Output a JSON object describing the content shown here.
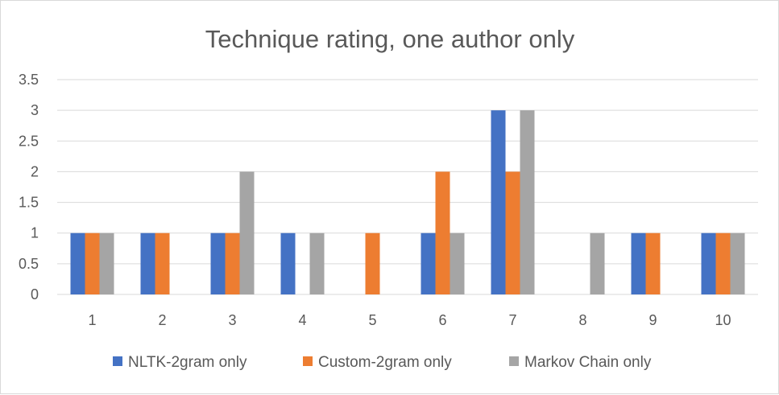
{
  "chart_data": {
    "type": "bar",
    "title": "Technique rating, one author only",
    "xlabel": "",
    "ylabel": "",
    "categories": [
      "1",
      "2",
      "3",
      "4",
      "5",
      "6",
      "7",
      "8",
      "9",
      "10"
    ],
    "ylim": [
      0,
      3.5
    ],
    "yticks": [
      "0",
      "0.5",
      "1",
      "1.5",
      "2",
      "2.5",
      "3",
      "3.5"
    ],
    "ytick_values": [
      0,
      0.5,
      1,
      1.5,
      2,
      2.5,
      3,
      3.5
    ],
    "grid": true,
    "legend_position": "bottom",
    "series": [
      {
        "name": "NLTK-2gram only",
        "color": "#4472C4",
        "values": [
          1,
          1,
          1,
          1,
          0,
          1,
          3,
          0,
          1,
          1
        ]
      },
      {
        "name": "Custom-2gram only",
        "color": "#ED7D31",
        "values": [
          1,
          1,
          1,
          0,
          1,
          2,
          2,
          0,
          1,
          1
        ]
      },
      {
        "name": "Markov Chain only",
        "color": "#A5A5A5",
        "values": [
          1,
          0,
          2,
          1,
          0,
          1,
          3,
          1,
          0,
          1
        ]
      }
    ]
  }
}
